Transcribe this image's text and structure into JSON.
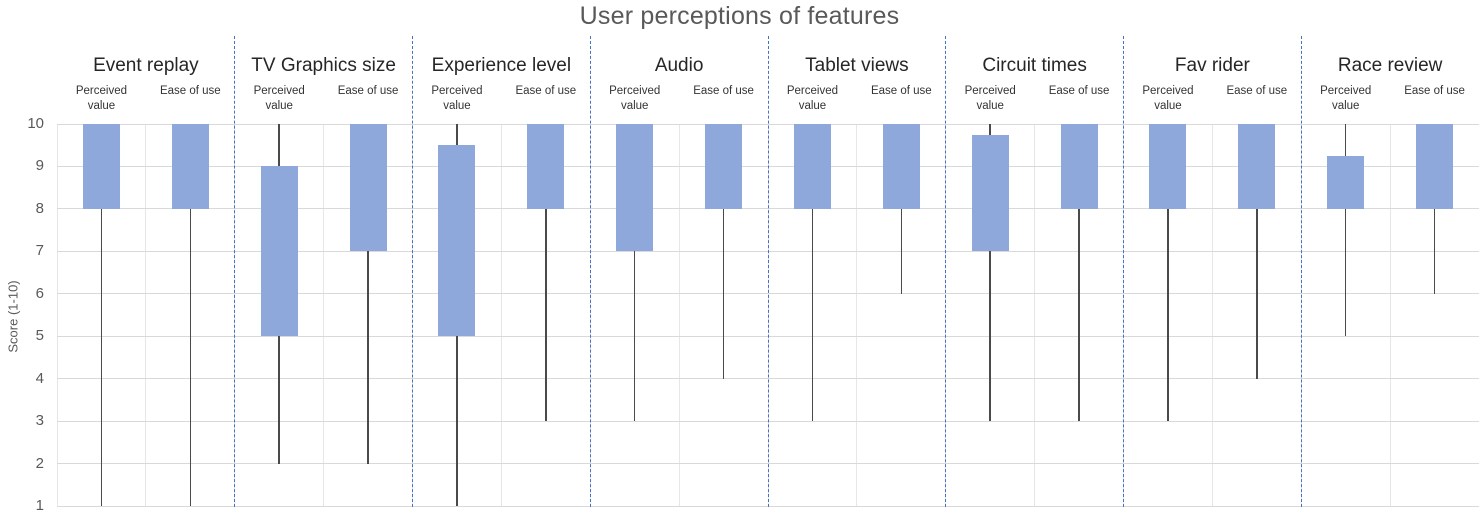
{
  "chart_data": {
    "type": "boxplot",
    "title": "User perceptions of features",
    "ylabel": "Score (1-10)",
    "ylim": [
      1,
      10
    ],
    "yticks": [
      10,
      9,
      8,
      7,
      6,
      5,
      4,
      3,
      2,
      1
    ],
    "grid": true,
    "legend": "none",
    "series_labels": [
      "Perceived value",
      "Ease of use"
    ],
    "groups": [
      {
        "name": "Event replay",
        "series": [
          {
            "name": "Perceived value",
            "low": 1,
            "box_bottom": 8,
            "box_top": 10,
            "high": 10
          },
          {
            "name": "Ease of use",
            "low": 1,
            "box_bottom": 8,
            "box_top": 10,
            "high": 10
          }
        ]
      },
      {
        "name": "TV Graphics size",
        "series": [
          {
            "name": "Perceived value",
            "low": 2,
            "box_bottom": 5,
            "box_top": 9,
            "high": 10
          },
          {
            "name": "Ease of use",
            "low": 2,
            "box_bottom": 7,
            "box_top": 10,
            "high": 10
          }
        ]
      },
      {
        "name": "Experience level",
        "series": [
          {
            "name": "Perceived value",
            "low": 1,
            "box_bottom": 5,
            "box_top": 9.5,
            "high": 10
          },
          {
            "name": "Ease of use",
            "low": 3,
            "box_bottom": 8,
            "box_top": 10,
            "high": 10
          }
        ]
      },
      {
        "name": "Audio",
        "series": [
          {
            "name": "Perceived value",
            "low": 3,
            "box_bottom": 7,
            "box_top": 10,
            "high": 10
          },
          {
            "name": "Ease of use",
            "low": 4,
            "box_bottom": 8,
            "box_top": 10,
            "high": 10
          }
        ]
      },
      {
        "name": "Tablet views",
        "series": [
          {
            "name": "Perceived value",
            "low": 3,
            "box_bottom": 8,
            "box_top": 10,
            "high": 10
          },
          {
            "name": "Ease of use",
            "low": 6,
            "box_bottom": 8,
            "box_top": 10,
            "high": 10
          }
        ]
      },
      {
        "name": "Circuit times",
        "series": [
          {
            "name": "Perceived value",
            "low": 3,
            "box_bottom": 7,
            "box_top": 9.75,
            "high": 10
          },
          {
            "name": "Ease of use",
            "low": 3,
            "box_bottom": 8,
            "box_top": 10,
            "high": 10
          }
        ]
      },
      {
        "name": "Fav rider",
        "series": [
          {
            "name": "Perceived value",
            "low": 3,
            "box_bottom": 8,
            "box_top": 10,
            "high": 10
          },
          {
            "name": "Ease of use",
            "low": 4,
            "box_bottom": 8,
            "box_top": 10,
            "high": 10
          }
        ]
      },
      {
        "name": "Race review",
        "series": [
          {
            "name": "Perceived value",
            "low": 5,
            "box_bottom": 8,
            "box_top": 9.25,
            "high": 10
          },
          {
            "name": "Ease of use",
            "low": 6,
            "box_bottom": 8,
            "box_top": 10,
            "high": 10
          }
        ]
      }
    ],
    "colors": {
      "box_fill": "#8FA8DC",
      "whisker": "#4a4a4a",
      "gridline": "#D9D9D9",
      "divider": "#4472C4",
      "title_text": "#595959",
      "axis_text": "#595959",
      "group_title_text": "#262626",
      "series_label_text": "#333333"
    }
  }
}
